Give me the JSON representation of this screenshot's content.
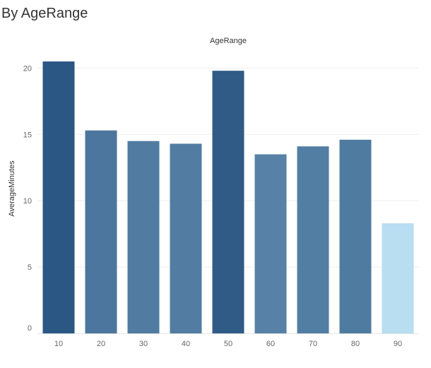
{
  "page": {
    "title": "By AgeRange"
  },
  "chart_data": {
    "type": "bar",
    "title": "AgeRange",
    "xlabel": "",
    "ylabel": "AverageMinutes",
    "categories": [
      "10",
      "20",
      "30",
      "40",
      "50",
      "60",
      "70",
      "80",
      "90"
    ],
    "values": [
      20.5,
      15.3,
      14.5,
      14.3,
      19.8,
      13.5,
      14.1,
      14.6,
      8.3
    ],
    "ylim": [
      0,
      21.3
    ],
    "yticks": [
      0,
      5,
      10,
      15,
      20
    ],
    "grid": true,
    "legend": "none",
    "colors": {
      "dark": "#2a5783",
      "light": "#b9ddf1",
      "grid": "#eeeeee",
      "tick_text": "#666666",
      "label_text": "#333333"
    }
  }
}
